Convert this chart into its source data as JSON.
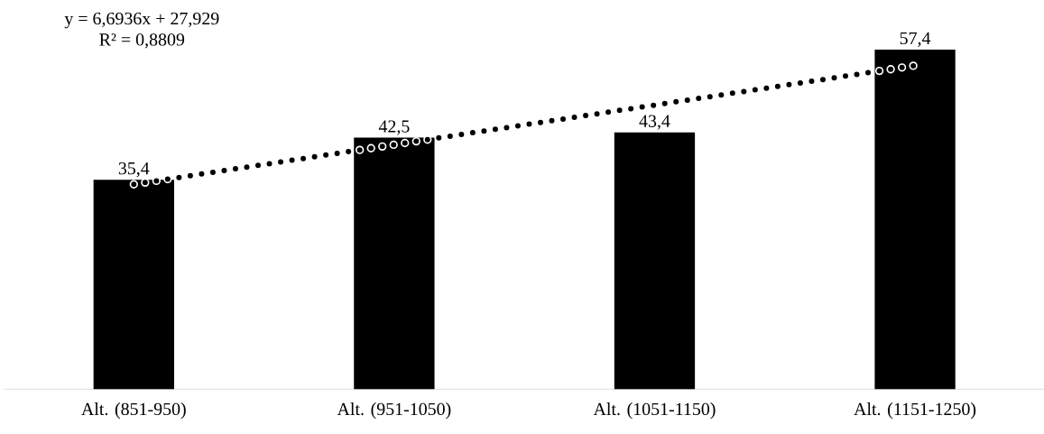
{
  "chart_data": {
    "type": "bar",
    "categories": [
      "Alt. (851-950)",
      "Alt. (951-1050)",
      "Alt. (1051-1150)",
      "Alt. (1151-1250)"
    ],
    "series": [
      {
        "color": "#000000",
        "values": [
          35.4,
          42.5,
          43.4,
          57.4
        ],
        "value_labels": [
          "35,4",
          "42,5",
          "43,4",
          "57,4"
        ]
      },
      {
        "type": "line",
        "color": "#000000",
        "line_style": "dotted",
        "marker": "none",
        "values": [
          34.62,
          41.32,
          48.01,
          54.7
        ]
      }
    ],
    "annotations": [
      "y = 6,6936x + 27,929",
      "R² = 0,8809"
    ]
  }
}
